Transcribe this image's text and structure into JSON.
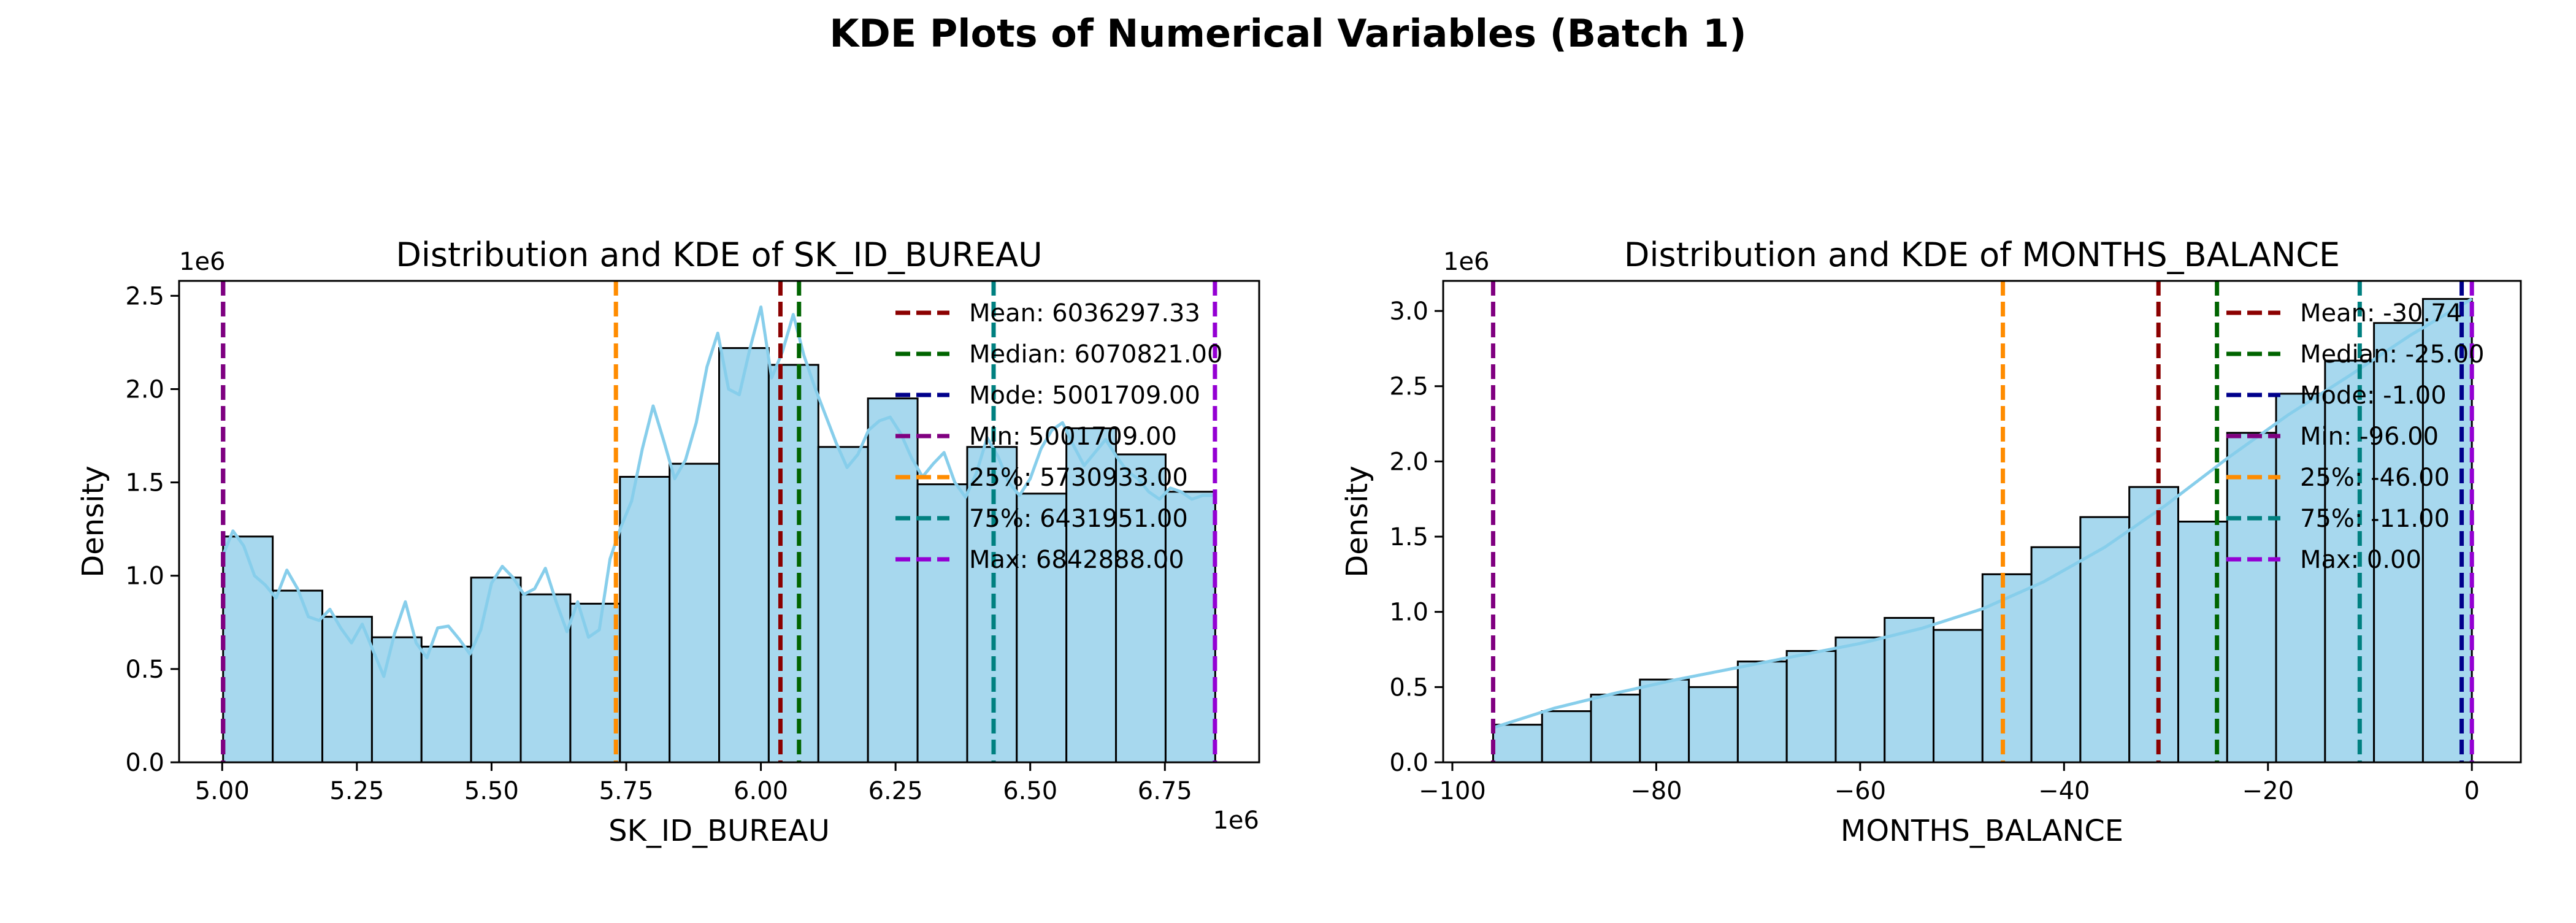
{
  "figure": {
    "title": "KDE Plots of Numerical Variables (Batch 1)"
  },
  "chart_data": [
    {
      "type": "histogram",
      "title": "Distribution and KDE of SK_ID_BUREAU",
      "xlabel": "SK_ID_BUREAU",
      "ylabel": "Density",
      "x_offset_label": "1e6",
      "y_offset_label": "1e6",
      "xlim": [
        4.92,
        6.925
      ],
      "ylim": [
        0,
        2.58
      ],
      "x_ticks": [
        5.0,
        5.25,
        5.5,
        5.75,
        6.0,
        6.25,
        6.5,
        6.75
      ],
      "x_tick_labels": [
        "5.00",
        "5.25",
        "5.50",
        "5.75",
        "6.00",
        "6.25",
        "6.50",
        "6.75"
      ],
      "y_ticks": [
        0.0,
        0.5,
        1.0,
        1.5,
        2.0,
        2.5
      ],
      "y_tick_labels": [
        "0.0",
        "0.5",
        "1.0",
        "1.5",
        "2.0",
        "2.5"
      ],
      "bin_edges": [
        5.0017,
        5.0938,
        5.1859,
        5.278,
        5.37,
        5.4621,
        5.5542,
        5.6463,
        5.7384,
        5.8305,
        5.9225,
        6.0146,
        6.1067,
        6.1988,
        6.2909,
        6.383,
        6.475,
        6.5671,
        6.6592,
        6.7513,
        6.8434
      ],
      "bar_heights": [
        1.21,
        0.92,
        0.78,
        0.67,
        0.62,
        0.99,
        0.9,
        0.85,
        1.53,
        1.6,
        2.22,
        2.13,
        1.69,
        1.95,
        1.49,
        1.69,
        1.44,
        1.79,
        1.65,
        1.45
      ],
      "kde": {
        "x": [
          5.0,
          5.02,
          5.04,
          5.06,
          5.08,
          5.1,
          5.12,
          5.14,
          5.16,
          5.18,
          5.2,
          5.22,
          5.24,
          5.26,
          5.28,
          5.3,
          5.32,
          5.34,
          5.36,
          5.38,
          5.4,
          5.42,
          5.44,
          5.46,
          5.48,
          5.5,
          5.52,
          5.54,
          5.56,
          5.58,
          5.6,
          5.62,
          5.64,
          5.66,
          5.68,
          5.7,
          5.72,
          5.74,
          5.76,
          5.78,
          5.8,
          5.82,
          5.84,
          5.86,
          5.88,
          5.9,
          5.92,
          5.94,
          5.96,
          5.98,
          6.0,
          6.02,
          6.04,
          6.06,
          6.08,
          6.1,
          6.12,
          6.14,
          6.16,
          6.18,
          6.2,
          6.22,
          6.24,
          6.26,
          6.28,
          6.3,
          6.32,
          6.34,
          6.36,
          6.38,
          6.4,
          6.42,
          6.44,
          6.46,
          6.48,
          6.5,
          6.52,
          6.54,
          6.56,
          6.58,
          6.6,
          6.62,
          6.64,
          6.66,
          6.68,
          6.7,
          6.72,
          6.74,
          6.76,
          6.78,
          6.8,
          6.82,
          6.84
        ],
        "y": [
          1.1,
          1.24,
          1.16,
          1.0,
          0.95,
          0.88,
          1.03,
          0.93,
          0.78,
          0.76,
          0.82,
          0.72,
          0.64,
          0.74,
          0.6,
          0.46,
          0.69,
          0.86,
          0.64,
          0.56,
          0.72,
          0.73,
          0.66,
          0.58,
          0.71,
          0.96,
          1.05,
          0.99,
          0.9,
          0.93,
          1.04,
          0.86,
          0.7,
          0.86,
          0.67,
          0.71,
          1.09,
          1.26,
          1.4,
          1.68,
          1.91,
          1.72,
          1.52,
          1.62,
          1.82,
          2.12,
          2.3,
          2.0,
          1.97,
          2.22,
          2.44,
          2.06,
          2.2,
          2.4,
          2.18,
          2.01,
          1.86,
          1.71,
          1.58,
          1.65,
          1.78,
          1.83,
          1.85,
          1.76,
          1.63,
          1.53,
          1.6,
          1.66,
          1.5,
          1.42,
          1.55,
          1.74,
          1.64,
          1.5,
          1.43,
          1.52,
          1.68,
          1.78,
          1.82,
          1.7,
          1.59,
          1.66,
          1.73,
          1.64,
          1.56,
          1.52,
          1.45,
          1.41,
          1.47,
          1.45,
          1.41,
          1.43,
          1.43
        ]
      },
      "lines": [
        {
          "label": "Mean: 6036297.33",
          "x": 6.0363,
          "color": "#8b0000"
        },
        {
          "label": "Median: 6070821.00",
          "x": 6.0708,
          "color": "#006400"
        },
        {
          "label": "Mode: 5001709.00",
          "x": 5.0017,
          "color": "#00008b"
        },
        {
          "label": "Min: 5001709.00",
          "x": 5.0017,
          "color": "#800080"
        },
        {
          "label": "25%: 5730933.00",
          "x": 5.7309,
          "color": "#ff8c00"
        },
        {
          "label": "75%: 6431951.00",
          "x": 6.432,
          "color": "#008080"
        },
        {
          "label": "Max: 6842888.00",
          "x": 6.8429,
          "color": "#9400d3"
        }
      ],
      "legend": "upper right",
      "grid": false
    },
    {
      "type": "histogram",
      "title": "Distribution and KDE of MONTHS_BALANCE",
      "xlabel": "MONTHS_BALANCE",
      "ylabel": "Density",
      "y_offset_label": "1e6",
      "xlim": [
        -100.9,
        4.8
      ],
      "ylim": [
        0,
        3.2
      ],
      "x_ticks": [
        -100,
        -80,
        -60,
        -40,
        -20,
        0
      ],
      "x_tick_labels": [
        "−100",
        "−80",
        "−60",
        "−40",
        "−20",
        "0"
      ],
      "y_ticks": [
        0.0,
        0.5,
        1.0,
        1.5,
        2.0,
        2.5,
        3.0
      ],
      "y_tick_labels": [
        "0.0",
        "0.5",
        "1.0",
        "1.5",
        "2.0",
        "2.5",
        "3.0"
      ],
      "bin_edges": [
        -96,
        -91.2,
        -86.4,
        -81.6,
        -76.8,
        -72,
        -67.2,
        -62.4,
        -57.6,
        -52.8,
        -48,
        -43.2,
        -38.4,
        -33.6,
        -28.8,
        -24,
        -19.2,
        -14.4,
        -9.6,
        -4.8,
        0
      ],
      "bar_heights": [
        0.25,
        0.34,
        0.45,
        0.55,
        0.5,
        0.67,
        0.74,
        0.83,
        0.96,
        0.88,
        1.25,
        1.43,
        1.63,
        1.83,
        1.6,
        2.19,
        2.45,
        2.67,
        2.92,
        3.08
      ],
      "kde": {
        "x": [
          -96,
          -90,
          -84,
          -78,
          -72,
          -66,
          -60,
          -54,
          -48,
          -42,
          -36,
          -30,
          -24,
          -18,
          -12,
          -6,
          0
        ],
        "y": [
          0.23,
          0.36,
          0.46,
          0.55,
          0.63,
          0.71,
          0.79,
          0.89,
          1.02,
          1.2,
          1.43,
          1.71,
          2.02,
          2.31,
          2.57,
          2.84,
          3.08
        ]
      },
      "lines": [
        {
          "label": "Mean: -30.74",
          "x": -30.74,
          "color": "#8b0000"
        },
        {
          "label": "Median: -25.00",
          "x": -25.0,
          "color": "#006400"
        },
        {
          "label": "Mode: -1.00",
          "x": -1.0,
          "color": "#00008b"
        },
        {
          "label": "Min: -96.00",
          "x": -96.0,
          "color": "#800080"
        },
        {
          "label": "25%: -46.00",
          "x": -46.0,
          "color": "#ff8c00"
        },
        {
          "label": "75%: -11.00",
          "x": -11.0,
          "color": "#008080"
        },
        {
          "label": "Max: 0.00",
          "x": 0.0,
          "color": "#9400d3"
        }
      ],
      "legend": "upper right",
      "grid": false
    }
  ],
  "style": {
    "bar_fill": "#a7d8ee",
    "bar_edge": "#000000",
    "kde_color": "#87ceeb"
  }
}
